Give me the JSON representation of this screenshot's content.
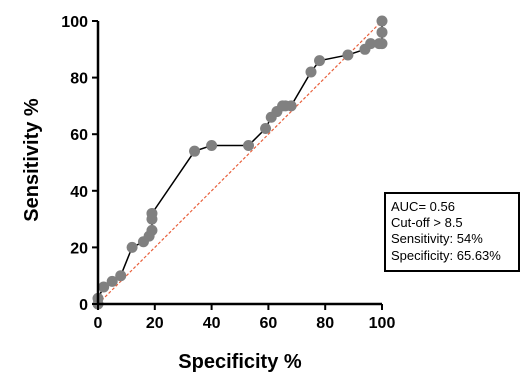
{
  "chart_data": {
    "type": "line",
    "xlabel": "Specificity %",
    "ylabel": "Sensitivity %",
    "xlim": [
      0,
      100
    ],
    "ylim": [
      0,
      100
    ],
    "x_ticks": [
      "0",
      "20",
      "40",
      "60",
      "80",
      "100"
    ],
    "y_ticks": [
      "0",
      "20",
      "40",
      "60",
      "80",
      "100"
    ],
    "grid": false,
    "series": [
      {
        "x": [
          0,
          0,
          2,
          5,
          8,
          12,
          16,
          18,
          19,
          19,
          19,
          34,
          40,
          53,
          59,
          61,
          63,
          65,
          66,
          68,
          75,
          78,
          88,
          94,
          96,
          99,
          100,
          100,
          100
        ],
        "y": [
          0,
          2,
          6,
          8,
          10,
          20,
          22,
          24,
          26,
          30,
          32,
          54,
          56,
          56,
          62,
          66,
          68,
          70,
          70,
          70,
          82,
          86,
          88,
          90,
          92,
          92,
          92,
          96,
          100
        ],
        "color": "#000000",
        "marker_color": "#808080"
      }
    ],
    "reference_line": {
      "x": [
        0,
        100
      ],
      "y": [
        0,
        100
      ],
      "color": "#e8603c",
      "style": "dashed"
    },
    "annotation": {
      "lines": [
        "AUC= 0.56",
        "Cut-off > 8.5",
        "Sensitivity: 54%",
        "Specificity: 65.63%"
      ],
      "placement": "lower-right"
    }
  }
}
